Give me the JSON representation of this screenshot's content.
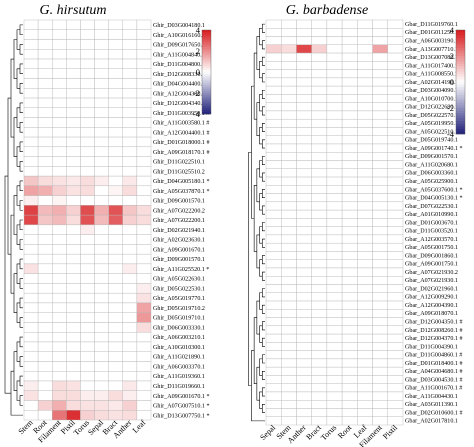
{
  "colors": {
    "low": "#20207a",
    "mid": "#ffffff",
    "high": "#d7191c",
    "grid": "#b5b5b5",
    "tree": "#000000"
  },
  "scale": {
    "ticks": [
      4,
      2,
      0,
      -2,
      -4
    ]
  },
  "chart_data": [
    {
      "type": "heatmap",
      "title": "G. hirsutum",
      "columns": [
        "Stem",
        "Root",
        "Filament",
        "Pistil",
        "Torus",
        "Sepal",
        "Bract",
        "Anther",
        "Leaf"
      ],
      "rows": [
        "Ghir_D03G004180.1",
        "Ghir_A10G016160.1",
        "Ghir_D09G017650.1",
        "Ghir_A11G004840.1 #",
        "Ghir_D11G004800.1 #",
        "Ghir_D12G008330.1 #",
        "Ghir_D04G004400.1 #",
        "Ghir_A12G004380.1 #",
        "Ghir_D12G004340.1 #",
        "Ghir_D11G003950.1 #",
        "Ghir_A11G003580.1 #",
        "Ghir_A12G004400.1 #",
        "Ghir_D01G018000.1 #",
        "Ghir_A09G018170.1 #",
        "Ghir_D11G022510.1",
        "Ghir_D11G025510.2",
        "Ghir_D04G005180.1 *",
        "Ghir_A05G037870.1 *",
        "Ghir_D09G001570.1",
        "Ghir_A07G022200.2",
        "Ghir_A07G022200.1",
        "Ghir_D02G021940.1",
        "Ghir_A02G023630.1",
        "Ghir_A09G001670.1",
        "Ghir_D09G001570.1",
        "Ghir_A11G025520.1 *",
        "Ghir_A05G022630.1",
        "Ghir_D05G022530.1",
        "Ghir_A05G019770.1",
        "Ghir_D05G019710.2",
        "Ghir_D05G019710.1",
        "Ghir_D06G003330.1",
        "Ghir_A06G003210.1",
        "Ghir_A10G010300.1",
        "Ghir_A11G021890.1",
        "Ghir_A06G003370.1",
        "Ghir_A11G019360.1",
        "Ghir_D11G019660.1",
        "Ghir_A09G001670.1 *",
        "Ghir_A07G007510.1 *",
        "Ghir_D13G007750.1 *"
      ],
      "values": [
        [
          0,
          0,
          0,
          0,
          0,
          0,
          0,
          0,
          0
        ],
        [
          0,
          0,
          0,
          0,
          0,
          0,
          0,
          0,
          0
        ],
        [
          0,
          0,
          0,
          0,
          0,
          0,
          0,
          0,
          0
        ],
        [
          0,
          0,
          0,
          0,
          0,
          0,
          0,
          0,
          0
        ],
        [
          0,
          0,
          0,
          0,
          0,
          0,
          0,
          0,
          0
        ],
        [
          0,
          0,
          0,
          0,
          0,
          0,
          0,
          0,
          0
        ],
        [
          0,
          0,
          0,
          0,
          0,
          0,
          0,
          0,
          0
        ],
        [
          0,
          0,
          0,
          0,
          0,
          0,
          0,
          0,
          0
        ],
        [
          0,
          0,
          0,
          0,
          0,
          0,
          0,
          0,
          0
        ],
        [
          0,
          0,
          0,
          0,
          0,
          0,
          0,
          0,
          0
        ],
        [
          0,
          0,
          0,
          0,
          0,
          0,
          0,
          0,
          0
        ],
        [
          0,
          0,
          0,
          0,
          0,
          0,
          0,
          0,
          0
        ],
        [
          0,
          0,
          0,
          0,
          0,
          0,
          0,
          0,
          0
        ],
        [
          0,
          0,
          0,
          0,
          0,
          0,
          0,
          0,
          0
        ],
        [
          0,
          0,
          0,
          0,
          0,
          0,
          0,
          0,
          0
        ],
        [
          0,
          0,
          0,
          0,
          0,
          0,
          0,
          0,
          0
        ],
        [
          1.0,
          0.6,
          0.5,
          0.4,
          0.6,
          0.3,
          0,
          0.4,
          0
        ],
        [
          1.6,
          1.4,
          0.8,
          0.5,
          0.6,
          0,
          0.2,
          0.6,
          0
        ],
        [
          0.3,
          0,
          0.2,
          0,
          0,
          0,
          0,
          0,
          0
        ],
        [
          3.3,
          1.2,
          1.4,
          0.8,
          3.1,
          1.4,
          3.0,
          1.0,
          0.6
        ],
        [
          3.2,
          1.0,
          1.2,
          0.6,
          3.0,
          1.2,
          2.8,
          0.8,
          0.6
        ],
        [
          0,
          0,
          0,
          0,
          0.3,
          0,
          0,
          0,
          0
        ],
        [
          0,
          0,
          0,
          0,
          0,
          0,
          0,
          0,
          0
        ],
        [
          0,
          0,
          0,
          0,
          0,
          0,
          0,
          0,
          0
        ],
        [
          0,
          0,
          0,
          0,
          0,
          0,
          0,
          0,
          0
        ],
        [
          0.5,
          0,
          0,
          0,
          0,
          0,
          0,
          0.3,
          0
        ],
        [
          0,
          0,
          0,
          0,
          0,
          0,
          0,
          0,
          0
        ],
        [
          0,
          0,
          0,
          0,
          0,
          0,
          0,
          0,
          0.3
        ],
        [
          0,
          0,
          0,
          0,
          0,
          0,
          0,
          0,
          0.5
        ],
        [
          0,
          0,
          0,
          0,
          0,
          0,
          0,
          0,
          1.6
        ],
        [
          0,
          0,
          0,
          0,
          0,
          0,
          0,
          0,
          1.8
        ],
        [
          0,
          0,
          0,
          0,
          0,
          0,
          0,
          0,
          0.6
        ],
        [
          0,
          0,
          0,
          0,
          0,
          0,
          0,
          0,
          0
        ],
        [
          0,
          0,
          0,
          0,
          0,
          0,
          0,
          0,
          0
        ],
        [
          0,
          0,
          0,
          0,
          0,
          0,
          0,
          0,
          0
        ],
        [
          0,
          0,
          0,
          0,
          0,
          0,
          0,
          0,
          0
        ],
        [
          0,
          0,
          0,
          0,
          0,
          0,
          0,
          0,
          0
        ],
        [
          0.3,
          0,
          0.6,
          0.5,
          0,
          0,
          0,
          0.4,
          0
        ],
        [
          0.5,
          0,
          0.6,
          0.6,
          0.3,
          0.3,
          0.6,
          0.3,
          0
        ],
        [
          0,
          0.8,
          1.4,
          0.6,
          0.5,
          0.5,
          0.4,
          0.8,
          0
        ],
        [
          0,
          0,
          2.4,
          3.6,
          0.8,
          0.6,
          0.5,
          0.6,
          0
        ]
      ],
      "scale": [
        -4,
        4
      ]
    },
    {
      "type": "heatmap",
      "title": "G. barbadense",
      "columns": [
        "Sepal",
        "Stem",
        "Anther",
        "Bract",
        "Torus",
        "Root",
        "Leaf",
        "Filament",
        "Pistil"
      ],
      "rows": [
        "Gbar_D11G019760.1",
        "Gbar_D01G011250.1",
        "Gbar_A06G003190.1",
        "Gbar_A13G007710.1 *",
        "Gbar_D13G007080.1",
        "Gbar_A11G017400.1",
        "Gbar_A11G008550.1",
        "Gbar_A02G014190.1",
        "Gbar_D03G004090.1",
        "Gbar_A10G010700.1",
        "Gbar_D12G022680.1",
        "Gbar_D05G022570.1",
        "Gbar_A05G019950.1",
        "Gbar_A05G022510.1",
        "Gbar_D05G019740.1",
        "Gbar_A09G001740.1 *",
        "Gbar_D09G001570.1",
        "Gbar_A11G020680.1",
        "Gbar_D06G003360.1",
        "Gbar_A05G025900.1",
        "Gbar_A05G037600.1 *",
        "Gbar_D04G005130.1 *",
        "Gbar_D07G022530.1",
        "Gbar_A01G010990.1",
        "Gbar_D01G003670.1",
        "Gbar_D11G003520.1",
        "Gbar_A12G003570.1",
        "Gbar_A05G001750.1",
        "Gbar_D09G001860.1",
        "Gbar_A09G001750.1",
        "Gbar_A07G021930.2",
        "Gbar_A07G021930.1",
        "Gbar_D02G021960.1",
        "Gbar_A12G009290.1",
        "Gbar_A12G004390.1",
        "Gbar_A09G018070.1",
        "Gbar_D12G004350.1 #",
        "Gbar_D12G008260.1 #",
        "Gbar_D12G004370.1 #",
        "Gbar_D11G004390.1",
        "Gbar_D11G004860.1 #",
        "Gbar_D01G018400.1 #",
        "Gbar_A04G004680.1 #",
        "Gbar_D03G004530.1 #",
        "Gbar_A11G001670.1 #",
        "Gbar_A11G004430.1",
        "Gbar_A03G011390.1",
        "Gbar_D02G010600.1 #",
        "Gbar_A02G017810.1"
      ],
      "values": [
        [
          0,
          0,
          0,
          0,
          0,
          0,
          0,
          0,
          0
        ],
        [
          0,
          0,
          0,
          0,
          0,
          0,
          0,
          0,
          0
        ],
        [
          0,
          0,
          0,
          0,
          0,
          0,
          0,
          0,
          0
        ],
        [
          0.8,
          0.6,
          3.2,
          0.8,
          0,
          0,
          0,
          1.6,
          0
        ],
        [
          0,
          0,
          0,
          0,
          0,
          0,
          0,
          0,
          0
        ],
        [
          0,
          0,
          0,
          0,
          0,
          0,
          0,
          0,
          0
        ],
        [
          0,
          0,
          0,
          0,
          0,
          0,
          0,
          0,
          0
        ],
        [
          0,
          0,
          0,
          0,
          0,
          0,
          0,
          0,
          0
        ],
        [
          0,
          0,
          0,
          0,
          0,
          0,
          0,
          0,
          0
        ],
        [
          0,
          0,
          0,
          0,
          0,
          0,
          0,
          0,
          0
        ],
        [
          0,
          0,
          0,
          0,
          0,
          0,
          0,
          0,
          0
        ],
        [
          0,
          0,
          0,
          0,
          0,
          0,
          0,
          0,
          0
        ],
        [
          0,
          0,
          0,
          0,
          0,
          0,
          0,
          0,
          0
        ],
        [
          0,
          0,
          0,
          0,
          0,
          0,
          0,
          0,
          0
        ],
        [
          0,
          0,
          0,
          0,
          0,
          0,
          0,
          0,
          0
        ],
        [
          0,
          0,
          0,
          0,
          0,
          0,
          0,
          0,
          0
        ],
        [
          0,
          0,
          0,
          0,
          0,
          0,
          0,
          0,
          0
        ],
        [
          0,
          0,
          0,
          0,
          0,
          0,
          0,
          0,
          0
        ],
        [
          0,
          0,
          0,
          0,
          0,
          0,
          0,
          0,
          0
        ],
        [
          0,
          0,
          0,
          0,
          0,
          0,
          0,
          0,
          0
        ],
        [
          0,
          0,
          0,
          0,
          0,
          0,
          0,
          0,
          0
        ],
        [
          0,
          0,
          0,
          0,
          0,
          0,
          0,
          0,
          0
        ],
        [
          0,
          0,
          0,
          0,
          0,
          0,
          0,
          0,
          0
        ],
        [
          0,
          0,
          0,
          0,
          0,
          0,
          0,
          0,
          0
        ],
        [
          0,
          0,
          0,
          0,
          0,
          0,
          0,
          0,
          0
        ],
        [
          0,
          0,
          0,
          0,
          0,
          0,
          0,
          0,
          0
        ],
        [
          0,
          0,
          0,
          0,
          0,
          0,
          0,
          0,
          0
        ],
        [
          0,
          0,
          0,
          0,
          0,
          0,
          0,
          0,
          0
        ],
        [
          0,
          0,
          0,
          0,
          0,
          0,
          0,
          0,
          0
        ],
        [
          0,
          0,
          0,
          0,
          0,
          0,
          0,
          0,
          0
        ],
        [
          0,
          0,
          0,
          0,
          0,
          0,
          0,
          0,
          0
        ],
        [
          0,
          0,
          0,
          0,
          0,
          0,
          0,
          0,
          0
        ],
        [
          0,
          0,
          0,
          0,
          0,
          0,
          0,
          0,
          0
        ],
        [
          0,
          0,
          0,
          0,
          0,
          0,
          0,
          0,
          0
        ],
        [
          0,
          0,
          0,
          0,
          0,
          0,
          0,
          0,
          0
        ],
        [
          0,
          0,
          0,
          0,
          0,
          0,
          0,
          0,
          0
        ],
        [
          0,
          0,
          0,
          0,
          0,
          0,
          0,
          0,
          0
        ],
        [
          0,
          0,
          0,
          0,
          0,
          0,
          0,
          0,
          0
        ],
        [
          0,
          0,
          0,
          0,
          0,
          0,
          0,
          0,
          0
        ],
        [
          0,
          0,
          0,
          0,
          0,
          0,
          0,
          0,
          0
        ],
        [
          0,
          0,
          0,
          0,
          0,
          0,
          0,
          0,
          0
        ],
        [
          0,
          0,
          0,
          0,
          0,
          0,
          0,
          0,
          0
        ],
        [
          0,
          0,
          0,
          0,
          0,
          0,
          0,
          0,
          0
        ],
        [
          0,
          0,
          0,
          0,
          0,
          0,
          0,
          0,
          0
        ],
        [
          0,
          0,
          0,
          0,
          0,
          0,
          0,
          0,
          0
        ],
        [
          0,
          0,
          0,
          0,
          0,
          0,
          0,
          0,
          0
        ],
        [
          0,
          0,
          0,
          0,
          0,
          0,
          0,
          0,
          0
        ],
        [
          0,
          0,
          0,
          0,
          0,
          0,
          0,
          0,
          0
        ],
        [
          0,
          0,
          0,
          0,
          0,
          0,
          0,
          0,
          0
        ]
      ],
      "scale": [
        -4,
        4
      ]
    }
  ]
}
